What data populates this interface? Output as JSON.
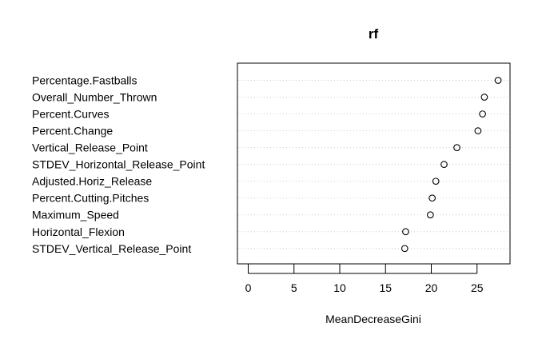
{
  "chart_data": {
    "type": "scatter",
    "title": "rf",
    "xlabel": "MeanDecreaseGini",
    "ylabel": "",
    "xlim": [
      0,
      28.5
    ],
    "xticks": [
      0,
      5,
      10,
      15,
      20,
      25
    ],
    "grid": "horizontal-dotted",
    "categories": [
      "Percentage.Fastballs",
      "Overall_Number_Thrown",
      "Percent.Curves",
      "Percent.Change",
      "Vertical_Release_Point",
      "STDEV_Horizontal_Release_Point",
      "Adjusted.Horiz_Release",
      "Percent.Cutting.Pitches",
      "Maximum_Speed",
      "Horizontal_Flexion",
      "STDEV_Vertical_Release_Point"
    ],
    "values": [
      27.3,
      25.8,
      25.6,
      25.1,
      22.8,
      21.4,
      20.5,
      20.1,
      19.9,
      17.2,
      17.1
    ],
    "point_color": "#000000",
    "grid_color": "#c8c8c8"
  }
}
